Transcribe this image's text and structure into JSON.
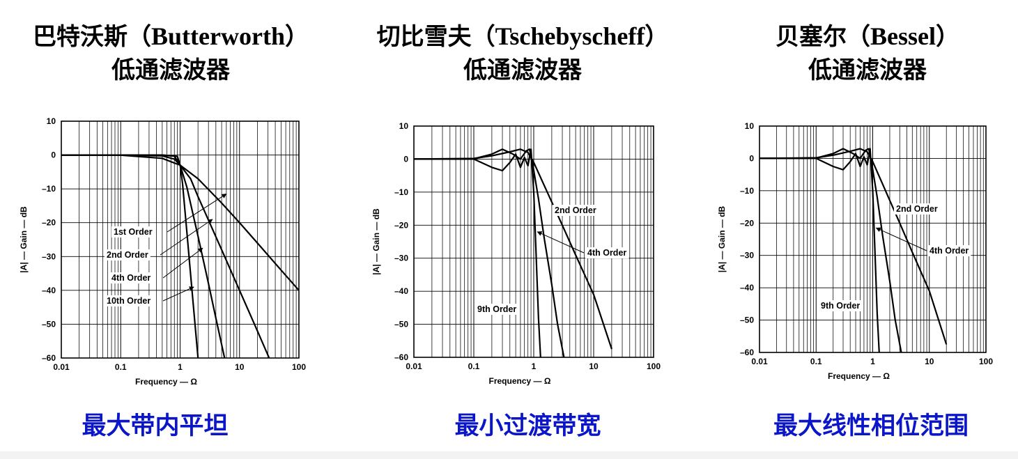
{
  "panels": [
    {
      "title_cn": "巴特沃斯（",
      "title_en": "Butterworth",
      "title_close": "）",
      "title_line2": "低通滤波器",
      "subtitle": "最大带内平坦"
    },
    {
      "title_cn": "切比雪夫（",
      "title_en": "Tschebyscheff",
      "title_close": "）",
      "title_line2": "低通滤波器",
      "subtitle": "最小过渡带宽"
    },
    {
      "title_cn": "贝塞尔（",
      "title_en": "Bessel",
      "title_close": "）",
      "title_line2": "低通滤波器",
      "subtitle": "最大线性相位范围"
    }
  ],
  "colors": {
    "subtitle": "#0a16c8",
    "curve": "#000000",
    "grid": "#000000"
  },
  "chart_data": [
    {
      "type": "line",
      "title": "巴特沃斯（Butterworth）低通滤波器",
      "xlabel": "Frequency — Ω",
      "ylabel": "|A| — Gain — dB",
      "xscale": "log",
      "xlim": [
        0.01,
        100
      ],
      "ylim": [
        -60,
        10
      ],
      "xticks": [
        "0.01",
        "0.1",
        "1",
        "10",
        "100"
      ],
      "yticks": [
        "10",
        "0",
        "–10",
        "–20",
        "–30",
        "–40",
        "–50",
        "–60"
      ],
      "grid": true,
      "series": [
        {
          "name": "1st Order",
          "x": [
            0.01,
            0.1,
            0.5,
            1,
            2,
            5,
            10,
            20,
            50,
            100
          ],
          "y": [
            0,
            -0.04,
            -0.97,
            -3.0,
            -7.0,
            -14.2,
            -20.0,
            -26.0,
            -34.0,
            -40.0
          ]
        },
        {
          "name": "2nd Order",
          "x": [
            0.01,
            0.1,
            0.5,
            0.8,
            1,
            1.5,
            2,
            5,
            10,
            20,
            31.6
          ],
          "y": [
            0,
            0,
            -0.26,
            -1.2,
            -3.0,
            -7.0,
            -12.3,
            -28.0,
            -40.0,
            -52.0,
            -60.0
          ]
        },
        {
          "name": "4th Order",
          "x": [
            0.01,
            0.1,
            0.5,
            0.8,
            1,
            1.3,
            1.6,
            2,
            3,
            4,
            5.6
          ],
          "y": [
            0,
            0,
            0,
            -0.3,
            -3.0,
            -9.5,
            -16.5,
            -24.0,
            -38.0,
            -48.2,
            -60.0
          ]
        },
        {
          "name": "10th Order",
          "x": [
            0.01,
            0.1,
            0.5,
            0.9,
            1,
            1.1,
            1.3,
            1.5,
            1.8,
            2
          ],
          "y": [
            0,
            0,
            0,
            -0.4,
            -3.0,
            -8.5,
            -22.8,
            -35.2,
            -51.0,
            -60.0
          ]
        }
      ]
    },
    {
      "type": "line",
      "title": "切比雪夫（Tschebyscheff）低通滤波器",
      "xlabel": "Frequency — Ω",
      "ylabel": "|A| — Gain — dB",
      "xscale": "log",
      "xlim": [
        0.01,
        100
      ],
      "ylim": [
        -60,
        10
      ],
      "xticks": [
        "0.01",
        "0.1",
        "1",
        "10",
        "100"
      ],
      "yticks": [
        "10",
        "0",
        "–10",
        "–20",
        "–30",
        "–40",
        "–50",
        "–60"
      ],
      "grid": true,
      "series": [
        {
          "name": "2nd Order",
          "x": [
            0.01,
            0.1,
            0.2,
            0.4,
            0.6,
            0.8,
            1,
            1.5,
            2,
            3,
            5,
            10,
            20
          ],
          "y": [
            0,
            0.2,
            1.0,
            2.2,
            3.0,
            2.0,
            -1.0,
            -8.0,
            -13.0,
            -20.0,
            -29.0,
            -41.0,
            -57.5
          ]
        },
        {
          "name": "4th Order",
          "x": [
            0.01,
            0.1,
            0.2,
            0.3,
            0.45,
            0.6,
            0.75,
            0.85,
            0.95,
            1.2,
            1.5,
            2,
            2.5,
            3.2
          ],
          "y": [
            0,
            0.1,
            1.5,
            3.0,
            1.5,
            0.0,
            2.5,
            3.0,
            -1.0,
            -12.0,
            -24.0,
            -38.0,
            -50.0,
            -60.0
          ]
        },
        {
          "name": "9th Order",
          "x": [
            0.01,
            0.1,
            0.2,
            0.3,
            0.4,
            0.5,
            0.6,
            0.7,
            0.8,
            0.9,
            1.0,
            1.1,
            1.2,
            1.3
          ],
          "y": [
            0,
            0,
            -2.5,
            -3.5,
            -1.0,
            1.5,
            -2.5,
            0.5,
            -2.0,
            3.0,
            -10.0,
            -30.0,
            -48.0,
            -60.0
          ]
        }
      ]
    },
    {
      "type": "line",
      "title": "贝塞尔（Bessel）低通滤波器",
      "xlabel": "Frequency — Ω",
      "ylabel": "|A| — Gain — dB",
      "xscale": "log",
      "xlim": [
        0.01,
        100
      ],
      "ylim": [
        -60,
        10
      ],
      "xticks": [
        "0.01",
        "0.1",
        "1",
        "10",
        "100"
      ],
      "yticks": [
        "10",
        "0",
        "–10",
        "–20",
        "–30",
        "–40",
        "–50",
        "–60"
      ],
      "grid": true,
      "series": [
        {
          "name": "2nd Order",
          "x": [
            0.01,
            0.1,
            0.2,
            0.4,
            0.6,
            0.8,
            1,
            1.5,
            2,
            3,
            5,
            10,
            20
          ],
          "y": [
            0,
            0.2,
            1.0,
            2.2,
            3.0,
            2.0,
            -1.0,
            -8.0,
            -13.0,
            -20.0,
            -29.0,
            -41.0,
            -57.5
          ]
        },
        {
          "name": "4th Order",
          "x": [
            0.01,
            0.1,
            0.2,
            0.3,
            0.45,
            0.6,
            0.75,
            0.85,
            0.95,
            1.2,
            1.5,
            2,
            2.5,
            3.2
          ],
          "y": [
            0,
            0.1,
            1.5,
            3.0,
            1.5,
            0.0,
            2.5,
            3.0,
            -1.0,
            -12.0,
            -24.0,
            -38.0,
            -50.0,
            -60.0
          ]
        },
        {
          "name": "9th Order",
          "x": [
            0.01,
            0.1,
            0.2,
            0.3,
            0.4,
            0.5,
            0.6,
            0.7,
            0.8,
            0.9,
            1.0,
            1.1,
            1.2,
            1.3
          ],
          "y": [
            0,
            0,
            -2.5,
            -3.5,
            -1.0,
            1.5,
            -2.5,
            0.5,
            -2.0,
            3.0,
            -10.0,
            -30.0,
            -48.0,
            -60.0
          ]
        }
      ]
    }
  ]
}
